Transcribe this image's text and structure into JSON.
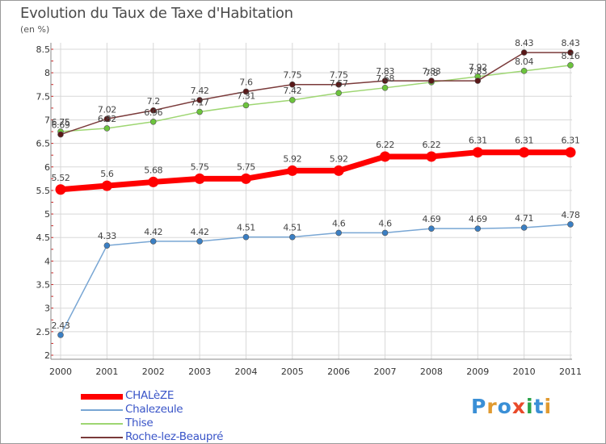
{
  "title": "Evolution du Taux de Taxe d'Habitation",
  "unit_label": "(en %)",
  "colors": {
    "background": "#ffffff",
    "grid": "#d8d8d8",
    "axis_text": "#333333",
    "label_text": "#444444",
    "legend_text": "#3a55c8"
  },
  "logo": {
    "text": "Proxiti",
    "letters": [
      "P",
      "r",
      "o",
      "x",
      "i",
      "t",
      "i"
    ],
    "colors": [
      "#3a8fd6",
      "#e09a30",
      "#3a8fd6",
      "#e94a2a",
      "#2aa34a",
      "#3a8fd6",
      "#e09a30"
    ]
  },
  "chart_data": {
    "type": "line",
    "title": "Evolution du Taux de Taxe d'Habitation",
    "ylabel": "(en %)",
    "xlabel": "",
    "categories": [
      "2000",
      "2001",
      "2002",
      "2003",
      "2004",
      "2005",
      "2006",
      "2007",
      "2008",
      "2009",
      "2010",
      "2011"
    ],
    "ylim": [
      2,
      8.5
    ],
    "yticks": [
      "2",
      "2.5",
      "3",
      "3.5",
      "4",
      "4.5",
      "5",
      "5.5",
      "6",
      "6.5",
      "7",
      "7.5",
      "8",
      "8.5"
    ],
    "grid": true,
    "legend_position": "bottom-left",
    "series": [
      {
        "name": "CHALèZE",
        "color": "#ff0000",
        "marker": "#ff0000",
        "width": 7,
        "values": [
          5.52,
          5.6,
          5.68,
          5.75,
          5.75,
          5.92,
          5.92,
          6.22,
          6.22,
          6.31,
          6.31,
          6.31
        ],
        "labels": [
          "5.52",
          "5.6",
          "5.68",
          "5.75",
          "5.75",
          "5.92",
          "5.92",
          "6.22",
          "6.22",
          "6.31",
          "6.31",
          "6.31"
        ]
      },
      {
        "name": "Chalezeule",
        "color": "#78a6d4",
        "marker": "#3a7fc4",
        "width": 1.5,
        "values": [
          2.43,
          4.33,
          4.42,
          4.42,
          4.51,
          4.51,
          4.6,
          4.6,
          4.69,
          4.69,
          4.71,
          4.78
        ],
        "labels": [
          "2.43",
          "4.33",
          "4.42",
          "4.42",
          "4.51",
          "4.51",
          "4.6",
          "4.6",
          "4.69",
          "4.69",
          "4.71",
          "4.78"
        ]
      },
      {
        "name": "Thise",
        "color": "#9ed672",
        "marker": "#6cc43c",
        "width": 1.5,
        "values": [
          6.75,
          6.82,
          6.96,
          7.17,
          7.31,
          7.42,
          7.57,
          7.68,
          7.8,
          7.92,
          8.04,
          8.16
        ],
        "labels": [
          "6.75",
          "6.82",
          "6.96",
          "7.17",
          "7.31",
          "7.42",
          "7.57",
          "7.68",
          "7.8",
          "7.92",
          "8.04",
          "8.16"
        ]
      },
      {
        "name": "Roche-lez-Beaupré",
        "color": "#7a3a3a",
        "marker": "#5a1818",
        "width": 1.5,
        "values": [
          6.69,
          7.02,
          7.2,
          7.42,
          7.6,
          7.75,
          7.75,
          7.83,
          7.83,
          7.83,
          8.43,
          8.43
        ],
        "labels": [
          "6.69",
          "7.02",
          "7.2",
          "7.42",
          "7.6",
          "7.75",
          "7.75",
          "7.83",
          "7.83",
          "7.83",
          "8.43",
          "8.43"
        ]
      }
    ]
  }
}
